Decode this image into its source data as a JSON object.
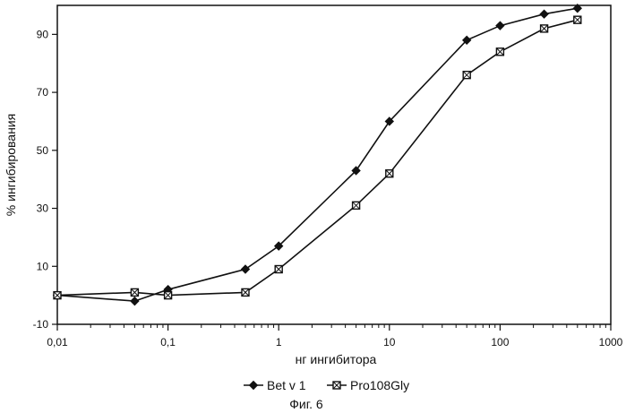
{
  "chart_data": {
    "type": "line",
    "xlabel": "нг ингибитора",
    "ylabel": "% ингибирования",
    "x_scale": "log",
    "xlim": [
      0.01,
      1000
    ],
    "ylim": [
      -10,
      100
    ],
    "x_ticks": [
      0.01,
      0.1,
      1,
      10,
      100,
      1000
    ],
    "x_tick_labels": [
      "0,01",
      "0,1",
      "1",
      "10",
      "100",
      "1000"
    ],
    "y_ticks": [
      -10,
      10,
      30,
      50,
      70,
      90
    ],
    "y_tick_labels": [
      "-10",
      "10",
      "30",
      "50",
      "70",
      "90"
    ],
    "grid": false,
    "legend_position": "bottom",
    "caption": "Фиг. 6",
    "series": [
      {
        "name": "Bet v 1",
        "marker": "diamond",
        "x": [
          0.01,
          0.05,
          0.1,
          0.5,
          1,
          5,
          10,
          50,
          100,
          250,
          500
        ],
        "y": [
          0,
          -2,
          2,
          9,
          17,
          43,
          60,
          88,
          93,
          97,
          99
        ]
      },
      {
        "name": "Pro108Gly",
        "marker": "crossed-square",
        "x": [
          0.01,
          0.05,
          0.1,
          0.5,
          1,
          5,
          10,
          50,
          100,
          250,
          500
        ],
        "y": [
          0,
          1,
          0,
          1,
          9,
          31,
          42,
          76,
          84,
          92,
          95
        ]
      }
    ]
  }
}
